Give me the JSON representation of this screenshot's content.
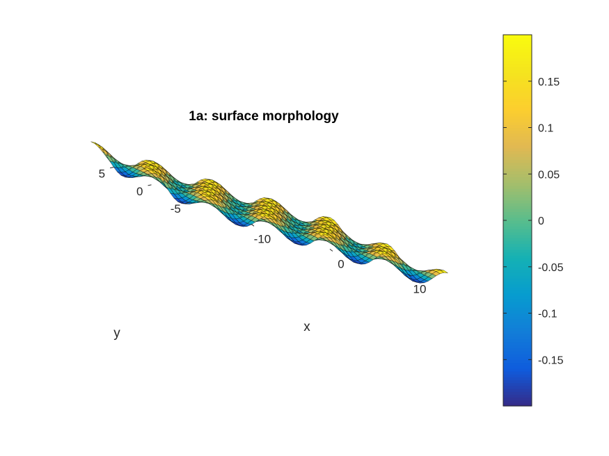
{
  "chart_data": {
    "type": "surface",
    "title": "1a: surface morphology",
    "xlabel": "x",
    "ylabel": "y",
    "xlim": [
      -15,
      15
    ],
    "ylim": [
      -8,
      8
    ],
    "x_ticks": [
      {
        "value": -10,
        "label": "-10"
      },
      {
        "value": 0,
        "label": "0"
      },
      {
        "value": 10,
        "label": "10"
      }
    ],
    "y_ticks": [
      {
        "value": -5,
        "label": "-5"
      },
      {
        "value": 0,
        "label": "0"
      },
      {
        "value": 5,
        "label": "5"
      }
    ],
    "surface": {
      "function": "0.2 * cos(2*pi*x/7.5) * cos(2*pi*y/7.5)",
      "amplitude": 0.2,
      "wavelength": 7.5,
      "grid_nx": 60,
      "grid_ny": 32,
      "edge_color": "#000000",
      "edge_alpha": 0.55
    },
    "colorbar": {
      "colormap": "parula",
      "range": [
        -0.2,
        0.2
      ],
      "ticks": [
        {
          "value": 0.15,
          "label": "0.15"
        },
        {
          "value": 0.1,
          "label": "0.1"
        },
        {
          "value": 0.05,
          "label": "0.05"
        },
        {
          "value": 0,
          "label": "0"
        },
        {
          "value": -0.05,
          "label": "-0.05"
        },
        {
          "value": -0.1,
          "label": "-0.1"
        },
        {
          "value": -0.15,
          "label": "-0.15"
        }
      ]
    },
    "grid": false
  }
}
